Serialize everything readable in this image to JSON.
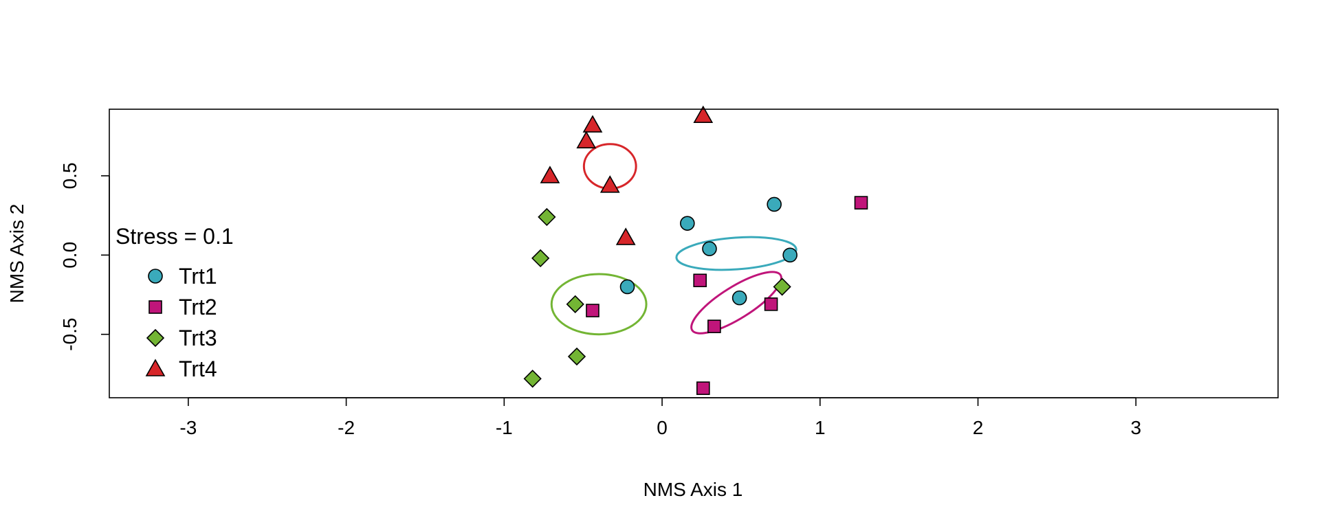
{
  "chart_data": {
    "type": "scatter",
    "xlabel": "NMS Axis 1",
    "ylabel": "NMS Axis 2",
    "xlim": [
      -3.5,
      3.9
    ],
    "ylim": [
      -0.9,
      0.92
    ],
    "x_ticks": [
      -3,
      -2,
      -1,
      0,
      1,
      2,
      3
    ],
    "y_ticks": [
      -0.5,
      0.0,
      0.5
    ],
    "x_tick_labels": [
      "-3",
      "-2",
      "-1",
      "0",
      "1",
      "2",
      "3"
    ],
    "y_tick_labels": [
      "-0.5",
      "0.0",
      "0.5"
    ],
    "grid": false,
    "legend_position": "left",
    "stress_label": "Stress = 0.1",
    "series": [
      {
        "name": "Trt1",
        "marker": "circle",
        "color": "#3aaabb",
        "points": [
          [
            0.16,
            0.2
          ],
          [
            0.71,
            0.32
          ],
          [
            0.3,
            0.04
          ],
          [
            0.81,
            0.0
          ],
          [
            -0.22,
            -0.2
          ],
          [
            0.49,
            -0.27
          ]
        ],
        "ellipse": {
          "cx": 0.47,
          "cy": 0.01,
          "rx": 0.76,
          "ry": 0.2,
          "angle": 4
        }
      },
      {
        "name": "Trt2",
        "marker": "square",
        "color": "#c0157a",
        "points": [
          [
            1.26,
            0.33
          ],
          [
            0.24,
            -0.16
          ],
          [
            -0.44,
            -0.35
          ],
          [
            0.69,
            -0.31
          ],
          [
            0.33,
            -0.45
          ],
          [
            0.26,
            -0.84
          ]
        ],
        "ellipse": {
          "cx": 0.47,
          "cy": -0.3,
          "rx": 0.66,
          "ry": 0.2,
          "angle": 32
        }
      },
      {
        "name": "Trt3",
        "marker": "diamond",
        "color": "#73b534",
        "points": [
          [
            -0.73,
            0.24
          ],
          [
            -0.77,
            -0.02
          ],
          [
            -0.55,
            -0.31
          ],
          [
            0.76,
            -0.2
          ],
          [
            -0.54,
            -0.64
          ],
          [
            -0.82,
            -0.78
          ]
        ],
        "ellipse": {
          "cx": -0.4,
          "cy": -0.31,
          "rx": 0.6,
          "ry": 0.38,
          "angle": 0
        }
      },
      {
        "name": "Trt4",
        "marker": "triangle",
        "color": "#d7262a",
        "points": [
          [
            0.26,
            0.88
          ],
          [
            -0.44,
            0.82
          ],
          [
            -0.48,
            0.72
          ],
          [
            -0.71,
            0.5
          ],
          [
            -0.33,
            0.44
          ],
          [
            -0.23,
            0.11
          ]
        ],
        "ellipse": {
          "cx": -0.33,
          "cy": 0.56,
          "rx": 0.33,
          "ry": 0.28,
          "angle": 0
        }
      }
    ]
  }
}
